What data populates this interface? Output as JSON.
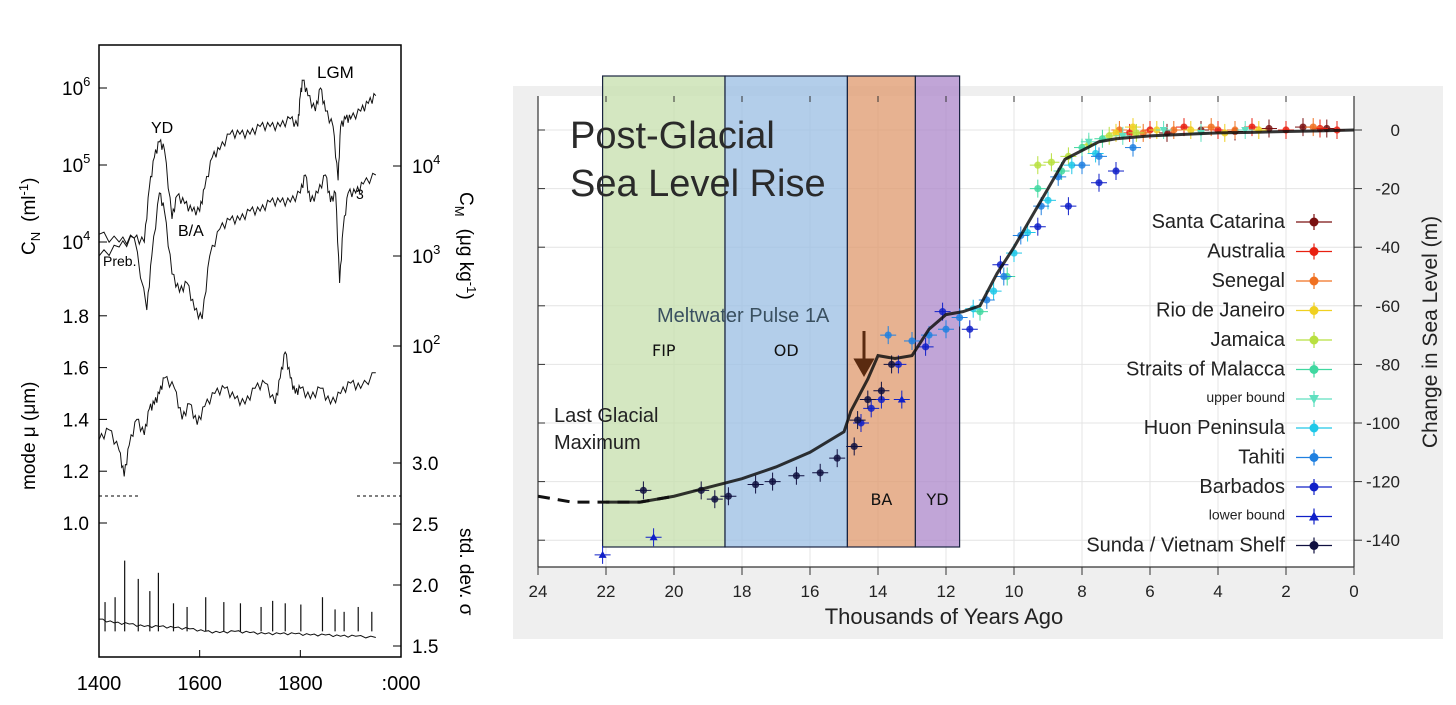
{
  "chart_data": [
    {
      "type": "line",
      "panels": [
        "C_N",
        "C_M",
        "mode",
        "std. dev."
      ],
      "xticks": [
        "1400",
        "1600",
        "1800",
        ":000"
      ],
      "xlim": [
        1400,
        2000
      ],
      "left_axis_ticks": {
        "cn": [
          "10",
          "10",
          "10"
        ],
        "cn_exp": [
          "4",
          "5",
          "6"
        ],
        "mode": [
          "1.8",
          "1.6",
          "1.4",
          "1.2",
          "1.0"
        ]
      },
      "right_axis_ticks": {
        "cm": [
          "10",
          "10",
          "10"
        ],
        "cm_exp": [
          "4",
          "3",
          "2"
        ],
        "sigma": [
          "3.0",
          "2.5",
          "2.0",
          "1.5"
        ]
      },
      "left_axis_labels": {
        "cn_main": "C",
        "cn_sub": "N",
        "cn_unit": "(ml",
        "cn_unit_exp": "-1",
        "cn_unit_end": ")",
        "mode": "mode μ  (μm)"
      },
      "right_axis_labels": {
        "cm_main": "C",
        "cm_sub": "M",
        "cm_unit": "(μg kg",
        "cm_unit_exp": "-1",
        "cm_unit_end": ")",
        "sigma": "std. dev.  σ"
      },
      "annotations": [
        "LGM",
        "YD",
        "B/A",
        "Preb.",
        "3"
      ],
      "series": [
        {
          "key": "cn",
          "x": [
            1400,
            1440,
            1470,
            1490,
            1500,
            1510,
            1520,
            1530,
            1545,
            1555,
            1570,
            1585,
            1600,
            1610,
            1625,
            1640,
            1660,
            1680,
            1700,
            1720,
            1740,
            1760,
            1780,
            1795,
            1800,
            1805,
            1815,
            1830,
            1840,
            1850,
            1865,
            1875,
            1880,
            1890,
            1900,
            1920,
            1935,
            1950
          ],
          "y": [
            4.1,
            4.0,
            4.05,
            4.0,
            4.7,
            5.1,
            5.3,
            5.2,
            4.3,
            4.6,
            4.5,
            4.4,
            4.4,
            4.7,
            5.1,
            5.2,
            5.4,
            5.4,
            5.4,
            5.5,
            5.5,
            5.5,
            5.6,
            5.5,
            5.9,
            6.1,
            5.9,
            5.7,
            6.0,
            5.7,
            5.5,
            4.8,
            5.5,
            5.6,
            5.6,
            5.7,
            5.8,
            5.9
          ]
        },
        {
          "key": "cm",
          "x": [
            1400,
            1440,
            1470,
            1495,
            1505,
            1520,
            1530,
            1545,
            1560,
            1575,
            1590,
            1605,
            1620,
            1640,
            1660,
            1680,
            1700,
            1720,
            1740,
            1760,
            1780,
            1800,
            1810,
            1820,
            1835,
            1850,
            1860,
            1870,
            1878,
            1885,
            1895,
            1910,
            1925,
            1950
          ],
          "y": [
            3.0,
            3.1,
            3.2,
            2.4,
            3.0,
            3.7,
            3.5,
            2.8,
            2.6,
            2.7,
            2.4,
            2.3,
            3.0,
            3.3,
            3.4,
            3.4,
            3.5,
            3.5,
            3.6,
            3.6,
            3.6,
            3.7,
            3.9,
            3.6,
            3.7,
            3.9,
            3.6,
            3.7,
            2.7,
            3.3,
            3.7,
            3.7,
            3.8,
            3.9
          ]
        },
        {
          "key": "mode",
          "x": [
            1400,
            1420,
            1440,
            1450,
            1460,
            1475,
            1490,
            1500,
            1510,
            1520,
            1530,
            1550,
            1565,
            1580,
            1595,
            1610,
            1630,
            1650,
            1670,
            1690,
            1710,
            1730,
            1750,
            1760,
            1770,
            1780,
            1790,
            1800,
            1820,
            1840,
            1860,
            1880,
            1900,
            1920,
            1950
          ],
          "y": [
            1.32,
            1.36,
            1.28,
            1.18,
            1.3,
            1.4,
            1.34,
            1.44,
            1.46,
            1.5,
            1.56,
            1.52,
            1.4,
            1.46,
            1.38,
            1.45,
            1.5,
            1.52,
            1.48,
            1.46,
            1.52,
            1.54,
            1.46,
            1.56,
            1.66,
            1.56,
            1.5,
            1.52,
            1.48,
            1.52,
            1.46,
            1.5,
            1.54,
            1.52,
            1.58
          ]
        },
        {
          "key": "sigma",
          "x": [
            1400,
            1430,
            1460,
            1490,
            1520,
            1550,
            1580,
            1610,
            1640,
            1670,
            1700,
            1730,
            1760,
            1790,
            1820,
            1850,
            1880,
            1910,
            1950
          ],
          "y": [
            1.72,
            1.69,
            1.68,
            1.66,
            1.66,
            1.65,
            1.64,
            1.62,
            1.61,
            1.62,
            1.61,
            1.6,
            1.6,
            1.6,
            1.59,
            1.59,
            1.58,
            1.58,
            1.57
          ]
        },
        {
          "key": "sigma_spikes",
          "x": [
            1412,
            1432,
            1451,
            1478,
            1501,
            1518,
            1548,
            1575,
            1612,
            1648,
            1681,
            1722,
            1745,
            1770,
            1801,
            1844,
            1869,
            1887,
            1915,
            1942
          ],
          "y": [
            1.86,
            1.9,
            2.2,
            2.05,
            1.95,
            2.1,
            1.85,
            1.82,
            1.9,
            1.86,
            1.85,
            1.82,
            1.87,
            1.85,
            1.84,
            1.9,
            1.8,
            1.78,
            1.82,
            1.78
          ]
        }
      ]
    },
    {
      "type": "scatter",
      "title": "Post-Glacial Sea Level Rise",
      "xlabel": "Thousands of Years Ago",
      "ylabel": "Change in Sea Level (m)",
      "xlim": [
        24,
        0
      ],
      "ylim": [
        -145,
        8
      ],
      "xticks": [
        "24",
        "22",
        "20",
        "18",
        "16",
        "14",
        "12",
        "10",
        "8",
        "6",
        "4",
        "2",
        "0"
      ],
      "yticks": [
        "0",
        "-20",
        "-40",
        "-60",
        "-80",
        "-100",
        "-120",
        "-140"
      ],
      "grid": true,
      "legend_position": "right",
      "periods": [
        {
          "label": "FIP",
          "x0": 22.1,
          "x1": 18.5,
          "color": "#c8e0b0"
        },
        {
          "label": "OD",
          "x0": 18.5,
          "x1": 14.9,
          "color": "#9ec0e4"
        },
        {
          "label": "BA",
          "x0": 14.9,
          "x1": 12.9,
          "color": "#e09c72"
        },
        {
          "label": "YD",
          "x0": 12.9,
          "x1": 11.6,
          "color": "#b08ccc"
        }
      ],
      "annotations": {
        "last_glacial_maximum": "Last Glacial Maximum",
        "meltwater_pulse": "Meltwater Pulse 1A"
      },
      "curve": {
        "x": [
          22,
          21,
          20,
          19,
          18,
          17,
          16,
          15,
          14.8,
          14.3,
          14,
          13.5,
          13,
          12.5,
          12,
          11.5,
          11,
          10.5,
          10,
          9.5,
          9,
          8.5,
          8,
          7.5,
          7,
          6,
          5,
          4,
          3,
          2,
          1,
          0
        ],
        "y": [
          -127,
          -127,
          -125,
          -122,
          -119,
          -115,
          -110,
          -103,
          -96,
          -85,
          -77,
          -78,
          -77,
          -68,
          -63,
          -62,
          -60,
          -49,
          -40,
          -30,
          -20,
          -10,
          -7,
          -4,
          -3,
          -2,
          -1.5,
          -1,
          -0.8,
          -0.5,
          -0.3,
          0
        ],
        "dashed_x": [
          24,
          23,
          22,
          21,
          20
        ],
        "dashed_y": [
          -125,
          -127,
          -127,
          -127,
          -125
        ]
      },
      "series": [
        {
          "name": "Santa Catarina",
          "color": "#7a1010",
          "marker": "circle",
          "points": [
            [
              5.5,
              -1
            ],
            [
              4.5,
              0
            ],
            [
              3.5,
              -0.5
            ],
            [
              2.5,
              0.5
            ],
            [
              1.5,
              1
            ],
            [
              0.8,
              0.5
            ]
          ]
        },
        {
          "name": "Australia",
          "color": "#e82010",
          "marker": "circle",
          "points": [
            [
              6.6,
              -1
            ],
            [
              6,
              0
            ],
            [
              5,
              1
            ],
            [
              4,
              0
            ],
            [
              3,
              1
            ],
            [
              2,
              0
            ],
            [
              1,
              0.5
            ],
            [
              0.5,
              0
            ]
          ]
        },
        {
          "name": "Senegal",
          "color": "#f07020",
          "marker": "circle",
          "points": [
            [
              6.9,
              0
            ],
            [
              6.2,
              -1
            ],
            [
              5.3,
              0
            ],
            [
              4.2,
              1
            ],
            [
              3.5,
              0
            ],
            [
              1.2,
              1
            ]
          ]
        },
        {
          "name": "Rio de Janeiro",
          "color": "#f0d020",
          "marker": "circle",
          "points": [
            [
              7.0,
              -1
            ],
            [
              6.5,
              1
            ],
            [
              5.8,
              0
            ],
            [
              4.8,
              0
            ],
            [
              3.8,
              -1
            ],
            [
              2.8,
              0
            ]
          ]
        },
        {
          "name": "Jamaica",
          "color": "#b8e040",
          "marker": "circle",
          "points": [
            [
              9.3,
              -12
            ],
            [
              8.9,
              -11
            ],
            [
              8.4,
              -9
            ],
            [
              7.8,
              -5
            ],
            [
              7.2,
              -2
            ],
            [
              6.4,
              -1
            ]
          ]
        },
        {
          "name": "Straits of Malacca",
          "color": "#40d8a0",
          "marker": "circle",
          "points": [
            [
              11.0,
              -62
            ],
            [
              10.2,
              -50
            ],
            [
              9.3,
              -20
            ],
            [
              8.6,
              -14
            ],
            [
              8.0,
              -6
            ],
            [
              7.4,
              -3
            ]
          ]
        },
        {
          "name": "upper bound",
          "color": "#60e0c0",
          "marker": "triangle-down",
          "points": [
            [
              7.8,
              -4
            ],
            [
              6.8,
              -2
            ],
            [
              5.6,
              0
            ],
            [
              4.5,
              -1
            ],
            [
              3.2,
              0
            ]
          ]
        },
        {
          "name": "Huon Peninsula",
          "color": "#20c8e8",
          "marker": "circle",
          "points": [
            [
              11.2,
              -61
            ],
            [
              10.6,
              -55
            ],
            [
              10.0,
              -42
            ],
            [
              9.6,
              -35
            ],
            [
              9.0,
              -24
            ],
            [
              8.3,
              -12
            ],
            [
              7.6,
              -8
            ]
          ]
        },
        {
          "name": "Tahiti",
          "color": "#2080e0",
          "marker": "circle",
          "points": [
            [
              13.7,
              -70
            ],
            [
              13.0,
              -72
            ],
            [
              12.5,
              -70
            ],
            [
              12.0,
              -68
            ],
            [
              11.6,
              -64
            ],
            [
              10.8,
              -58
            ],
            [
              10.3,
              -50
            ],
            [
              9.8,
              -36
            ],
            [
              9.2,
              -26
            ],
            [
              8.7,
              -16
            ],
            [
              8.0,
              -12
            ],
            [
              7.5,
              -9
            ],
            [
              6.5,
              -6
            ]
          ]
        },
        {
          "name": "Barbados",
          "color": "#1020c8",
          "marker": "circle",
          "points": [
            [
              14.5,
              -100
            ],
            [
              14.2,
              -95
            ],
            [
              13.9,
              -92
            ],
            [
              13.4,
              -80
            ],
            [
              12.6,
              -74
            ],
            [
              12.1,
              -62
            ],
            [
              11.3,
              -68
            ],
            [
              10.4,
              -46
            ],
            [
              9.3,
              -33
            ],
            [
              8.4,
              -26
            ],
            [
              7.5,
              -18
            ],
            [
              7.0,
              -14
            ]
          ]
        },
        {
          "name": "lower bound",
          "color": "#1020c8",
          "marker": "triangle-up",
          "points": [
            [
              22.1,
              -145
            ],
            [
              20.6,
              -139
            ],
            [
              13.3,
              -92
            ]
          ]
        },
        {
          "name": "Sunda / Vietnam Shelf",
          "color": "#101040",
          "marker": "circle",
          "points": [
            [
              20.9,
              -123
            ],
            [
              19.2,
              -123
            ],
            [
              18.8,
              -126
            ],
            [
              18.4,
              -125
            ],
            [
              17.6,
              -121
            ],
            [
              17.1,
              -120
            ],
            [
              16.4,
              -118
            ],
            [
              15.7,
              -117
            ],
            [
              15.2,
              -112
            ],
            [
              14.7,
              -108
            ],
            [
              14.6,
              -99
            ],
            [
              14.3,
              -92
            ],
            [
              13.9,
              -89
            ],
            [
              13.6,
              -80
            ]
          ]
        }
      ]
    }
  ]
}
